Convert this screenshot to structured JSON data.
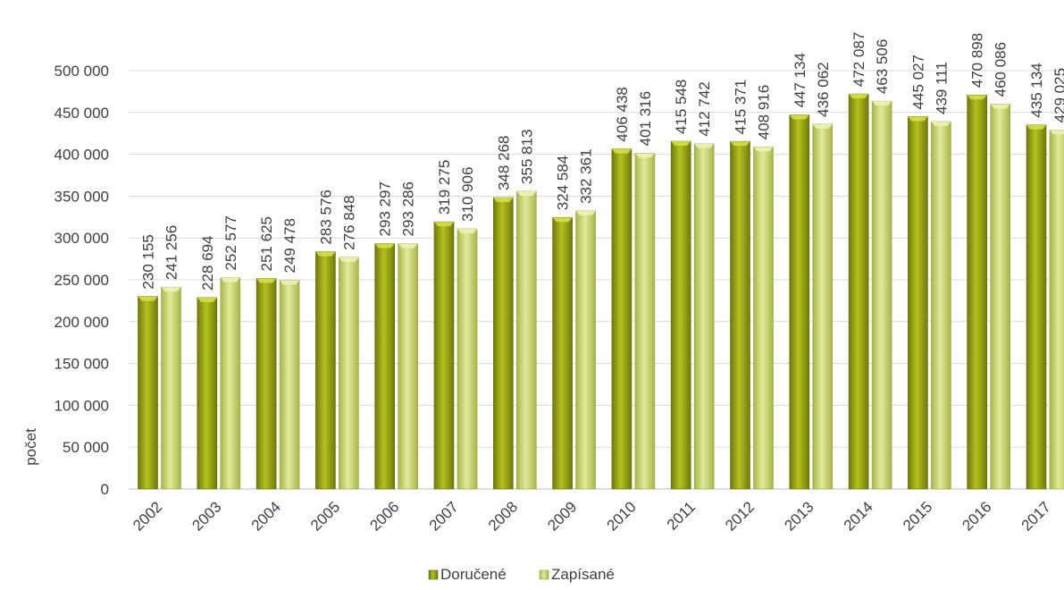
{
  "chart_data": {
    "type": "bar",
    "title": "",
    "xlabel": "",
    "ylabel": "počet",
    "ylim": [
      0,
      500000
    ],
    "ytick_step": 50000,
    "y_tick_labels": [
      "0",
      "50 000",
      "100 000",
      "150 000",
      "200 000",
      "250 000",
      "300 000",
      "350 000",
      "400 000",
      "450 000",
      "500 000"
    ],
    "categories": [
      "2002",
      "2003",
      "2004",
      "2005",
      "2006",
      "2007",
      "2008",
      "2009",
      "2010",
      "2011",
      "2012",
      "2013",
      "2014",
      "2015",
      "2016",
      "2017"
    ],
    "series": [
      {
        "name": "Doručené",
        "color": "#9aa51a",
        "values": [
          230155,
          228694,
          251625,
          283576,
          293297,
          319275,
          348268,
          324584,
          406438,
          415548,
          415371,
          447134,
          472087,
          445027,
          470898,
          435134
        ],
        "labels": [
          "230 155",
          "228 694",
          "251 625",
          "283 576",
          "293 297",
          "319 275",
          "348 268",
          "324 584",
          "406 438",
          "415 548",
          "415 371",
          "447 134",
          "472 087",
          "445 027",
          "470 898",
          "435 134"
        ]
      },
      {
        "name": "Zapísané",
        "color": "#c9d46a",
        "values": [
          241256,
          252577,
          249478,
          276848,
          293286,
          310906,
          355813,
          332361,
          401316,
          412742,
          408916,
          436062,
          463506,
          439111,
          460086,
          429025
        ],
        "labels": [
          "241 256",
          "252 577",
          "249 478",
          "276 848",
          "293 286",
          "310 906",
          "355 813",
          "332 361",
          "401 316",
          "412 742",
          "408 916",
          "436 062",
          "463 506",
          "439 111",
          "460 086",
          "429 025"
        ]
      }
    ],
    "grid": true,
    "legend": "bottom-center"
  }
}
